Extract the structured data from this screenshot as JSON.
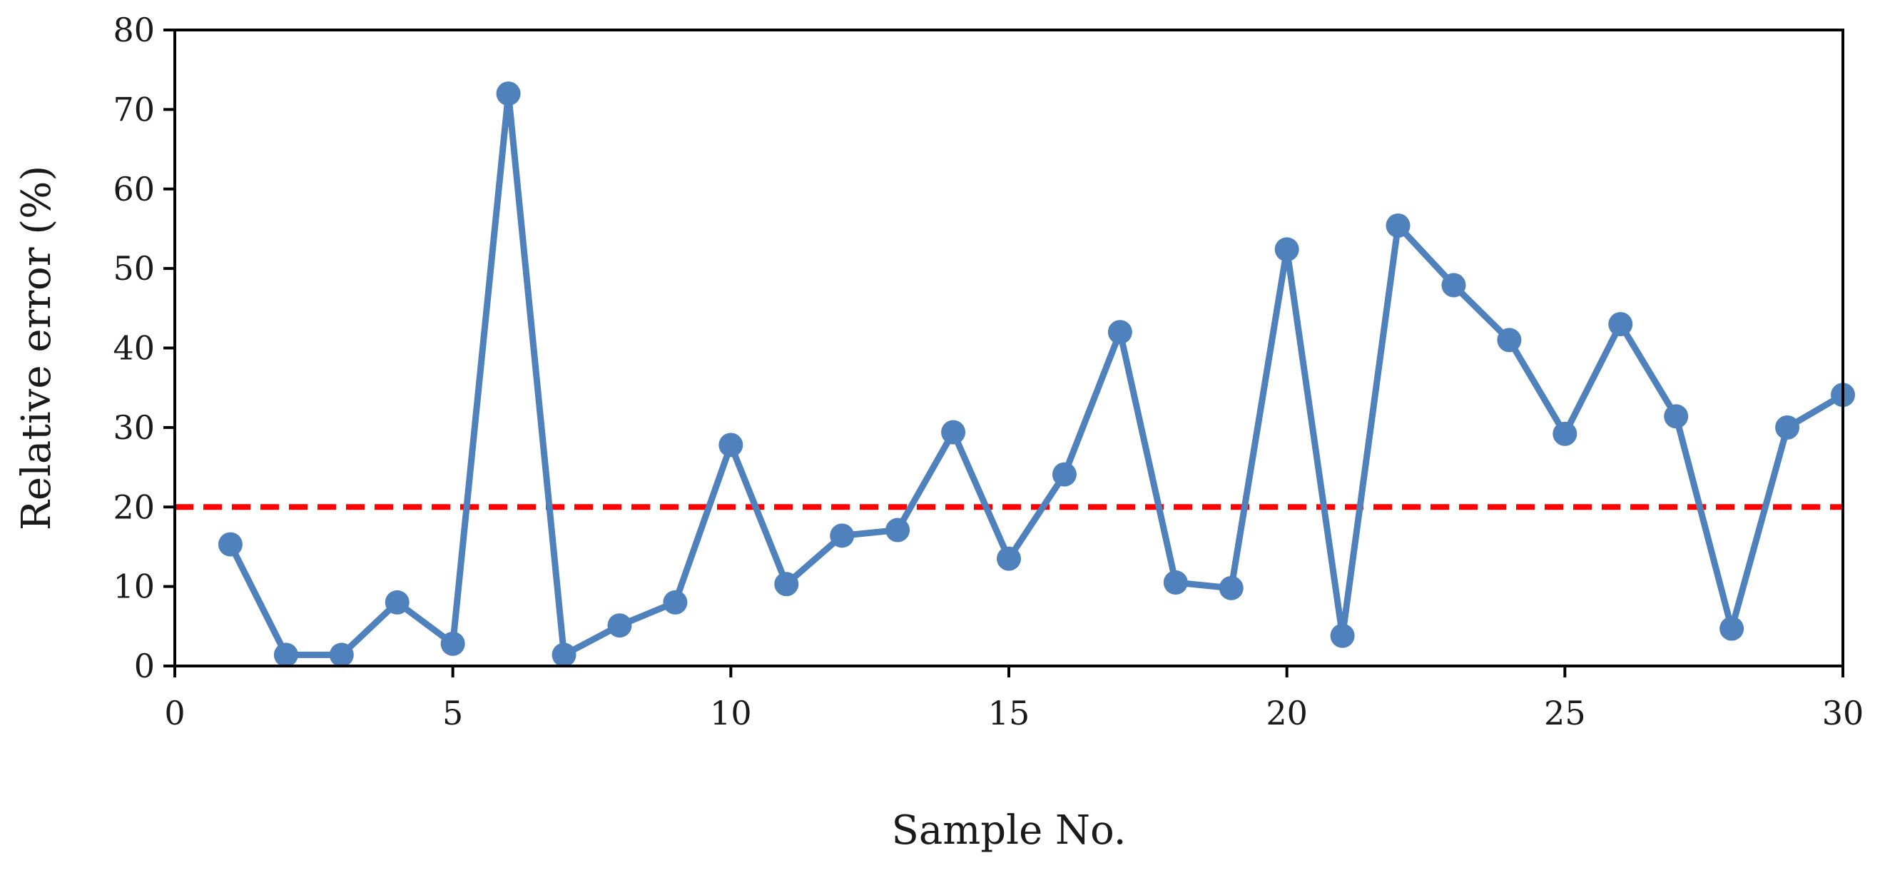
{
  "chart_data": {
    "type": "line",
    "xlabel": "Sample No.",
    "ylabel": "Relative error (%)",
    "xlim": [
      0,
      30
    ],
    "ylim": [
      0,
      80
    ],
    "xticks": [
      0,
      5,
      10,
      15,
      20,
      25,
      30
    ],
    "yticks": [
      0,
      10,
      20,
      30,
      40,
      50,
      60,
      70,
      80
    ],
    "grid": false,
    "series": [
      {
        "color": "#4f81bd",
        "marker": "circle",
        "x": [
          1,
          2,
          3,
          4,
          5,
          6,
          7,
          8,
          9,
          10,
          11,
          12,
          13,
          14,
          15,
          16,
          17,
          18,
          19,
          20,
          21,
          22,
          23,
          24,
          25,
          26,
          27,
          28,
          29,
          30
        ],
        "values": [
          15.3,
          1.4,
          1.4,
          8,
          2.8,
          72,
          1.4,
          5.1,
          8,
          27.8,
          10.3,
          16.4,
          17.1,
          29.4,
          13.5,
          24.1,
          42,
          10.5,
          9.8,
          52.4,
          3.8,
          55.4,
          47.9,
          41,
          29.2,
          43,
          31.4,
          4.7,
          30,
          34.1
        ]
      }
    ],
    "reference_lines": [
      {
        "y": 20,
        "color": "#ff0000",
        "style": "dashed"
      }
    ]
  }
}
